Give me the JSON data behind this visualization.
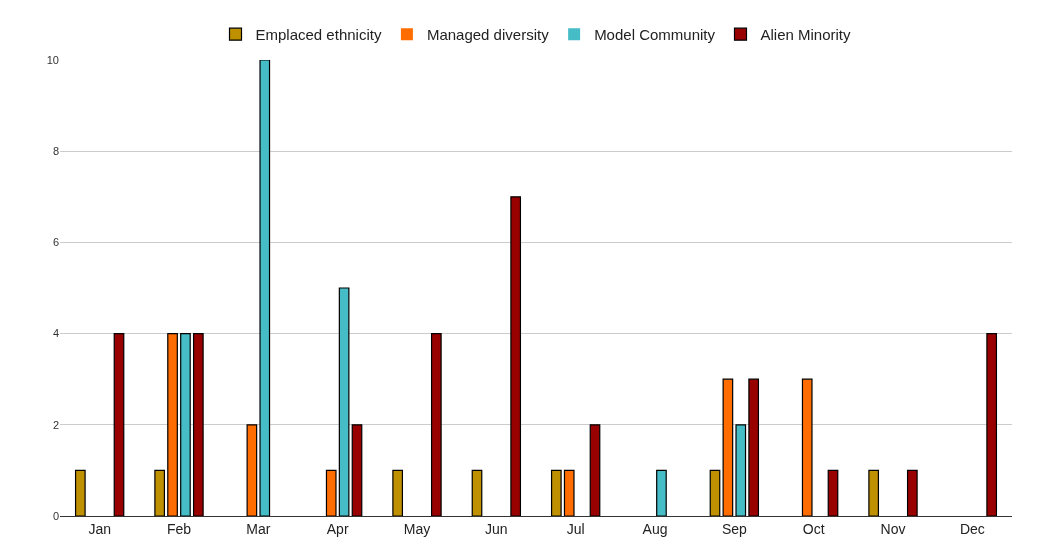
{
  "chart_data": {
    "type": "bar",
    "categories": [
      "Jan",
      "Feb",
      "Mar",
      "Apr",
      "May",
      "Jun",
      "Jul",
      "Aug",
      "Sep",
      "Oct",
      "Nov",
      "Dec"
    ],
    "series": [
      {
        "name": "Emplaced ethnicity",
        "color": "#bf9000",
        "values": [
          1,
          1,
          0,
          0,
          1,
          1,
          1,
          0,
          1,
          0,
          1,
          0
        ]
      },
      {
        "name": "Managed diversity",
        "color": "#ff6d01",
        "values": [
          0,
          4,
          2,
          1,
          0,
          0,
          1,
          0,
          3,
          3,
          0,
          0
        ]
      },
      {
        "name": "Model Community",
        "color": "#46bdc6",
        "values": [
          0,
          4,
          10,
          5,
          0,
          0,
          0,
          1,
          2,
          0,
          0,
          0
        ]
      },
      {
        "name": "Alien Minority",
        "color": "#990000",
        "values": [
          4,
          4,
          0,
          2,
          4,
          7,
          2,
          0,
          3,
          1,
          1,
          4
        ]
      }
    ],
    "ylim": [
      0,
      10
    ],
    "yticks": [
      0,
      2,
      4,
      6,
      8,
      10
    ],
    "grid": "y",
    "legend": "top"
  }
}
